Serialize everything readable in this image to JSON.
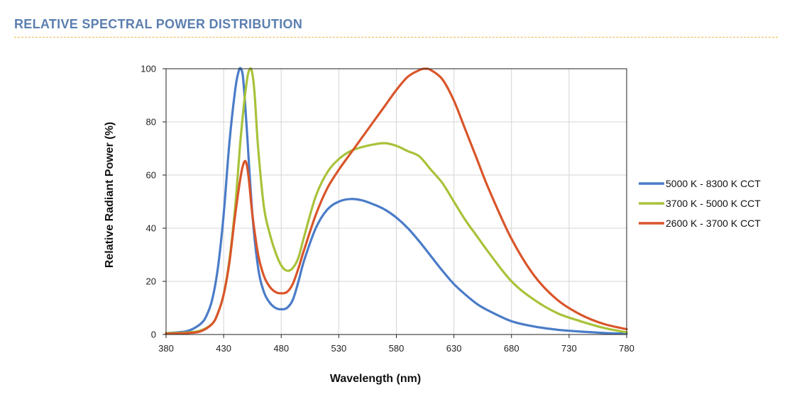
{
  "header": {
    "title": "RELATIVE SPECTRAL POWER DISTRIBUTION"
  },
  "colors": {
    "title": "#5b7fb0",
    "rule": "#e8b64a"
  },
  "chart_data": {
    "type": "line",
    "title": "",
    "xlabel": "Wavelength (nm)",
    "ylabel": "Relative Radiant Power (%)",
    "xlim": [
      380,
      780
    ],
    "ylim": [
      0,
      100
    ],
    "xticks": [
      380,
      430,
      480,
      530,
      580,
      630,
      680,
      730,
      780
    ],
    "yticks": [
      0,
      20,
      40,
      60,
      80,
      100
    ],
    "grid": true,
    "legend_position": "right",
    "series": [
      {
        "name": "5000 K - 8300 K CCT",
        "color": "#4a7cc8",
        "x": [
          380,
          390,
          400,
          410,
          415,
          420,
          425,
          430,
          435,
          440,
          443,
          445,
          447,
          450,
          455,
          460,
          465,
          470,
          475,
          480,
          485,
          490,
          495,
          500,
          510,
          520,
          530,
          540,
          550,
          560,
          570,
          580,
          590,
          600,
          610,
          620,
          630,
          640,
          650,
          660,
          680,
          700,
          720,
          740,
          760,
          780
        ],
        "y": [
          0.5,
          0.8,
          1.5,
          4,
          7,
          13,
          25,
          45,
          72,
          92,
          99,
          100,
          96,
          78,
          45,
          25,
          16,
          12,
          10,
          9.5,
          10,
          13,
          20,
          28,
          40,
          47,
          50,
          51,
          50.5,
          49,
          47,
          44,
          40,
          35,
          29.5,
          24,
          19,
          15,
          11.5,
          9,
          5,
          3,
          1.8,
          1.1,
          0.6,
          0.3
        ]
      },
      {
        "name": "3700 K - 5000 K CCT",
        "color": "#a8c23a",
        "x": [
          380,
          390,
          400,
          410,
          420,
          425,
          430,
          435,
          440,
          445,
          450,
          453,
          455,
          457,
          460,
          465,
          470,
          475,
          480,
          485,
          490,
          495,
          500,
          510,
          520,
          530,
          540,
          550,
          560,
          570,
          580,
          590,
          600,
          610,
          620,
          630,
          640,
          650,
          660,
          680,
          700,
          720,
          740,
          760,
          780
        ],
        "y": [
          0.5,
          0.6,
          0.8,
          1.5,
          4,
          8,
          15,
          28,
          48,
          75,
          95,
          100,
          98,
          90,
          70,
          48,
          38,
          31,
          26,
          24,
          25,
          29,
          37,
          52,
          61,
          66,
          69,
          70.5,
          71.5,
          72,
          71,
          69,
          67,
          62,
          57,
          50,
          43,
          37,
          31,
          20,
          13,
          8,
          5,
          2.5,
          0.8
        ]
      },
      {
        "name": "2600 K - 3700 K CCT",
        "color": "#d9552a",
        "x": [
          380,
          390,
          400,
          410,
          420,
          425,
          430,
          435,
          440,
          445,
          448,
          450,
          452,
          455,
          460,
          465,
          470,
          475,
          480,
          485,
          490,
          495,
          500,
          510,
          520,
          530,
          540,
          550,
          560,
          570,
          580,
          590,
          600,
          605,
          610,
          620,
          630,
          640,
          650,
          660,
          680,
          700,
          720,
          740,
          760,
          780
        ],
        "y": [
          0.3,
          0.4,
          0.6,
          1.2,
          4,
          8,
          15,
          27,
          45,
          60,
          65,
          64,
          58,
          45,
          30,
          22,
          18,
          16,
          15.5,
          16,
          19,
          25,
          32,
          45,
          55,
          62,
          68,
          74,
          80,
          86,
          92,
          97,
          99.5,
          100,
          99.5,
          96,
          88,
          77,
          66,
          55,
          36,
          22,
          13,
          7.5,
          4,
          2
        ]
      }
    ]
  }
}
